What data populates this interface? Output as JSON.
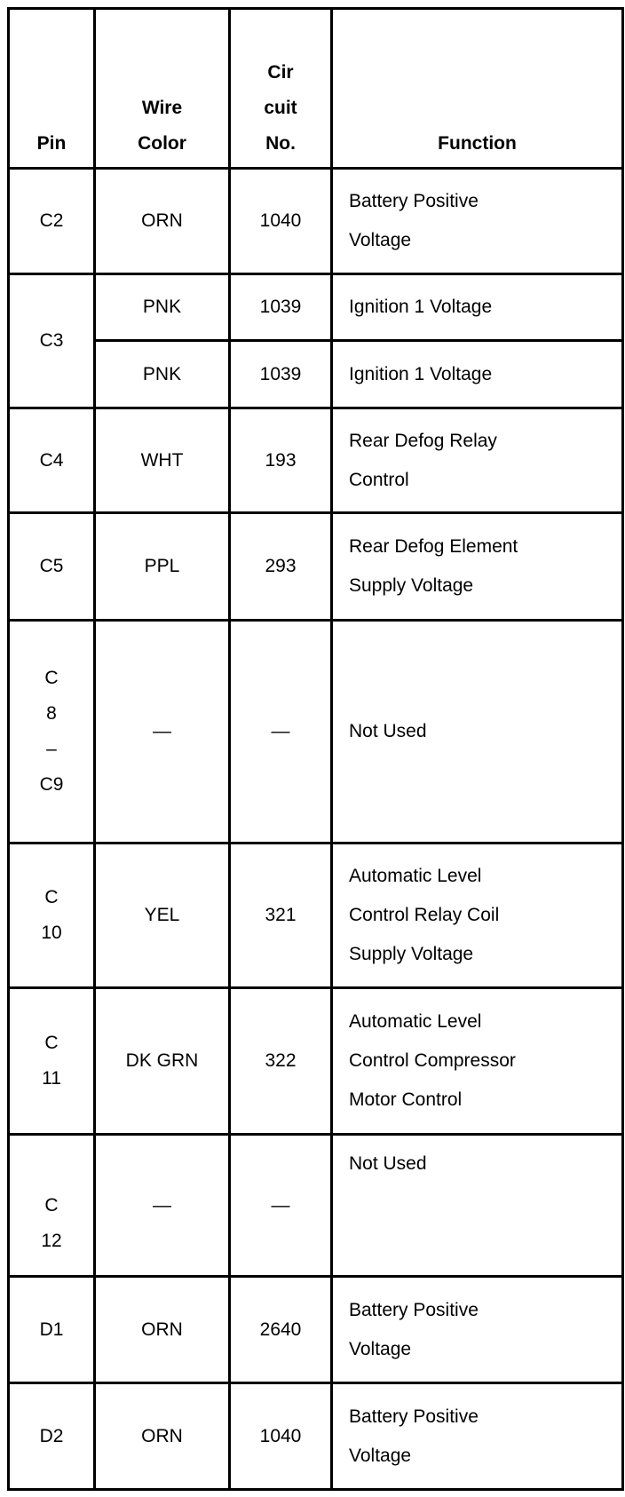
{
  "headers": {
    "pin": "Pin",
    "wire_color": [
      "Wire",
      "Color"
    ],
    "circuit_no": [
      "Cir",
      "cuit",
      "No."
    ],
    "function": "Function"
  },
  "rows": [
    {
      "pin": "C2",
      "wire": "ORN",
      "circuit": "1040",
      "function": [
        "Battery Positive",
        "Voltage"
      ]
    },
    {
      "pin": "C3",
      "wire": "PNK",
      "circuit": "1039",
      "function": [
        "Ignition 1 Voltage"
      ]
    },
    {
      "pin": "",
      "wire": "PNK",
      "circuit": "1039",
      "function": [
        "Ignition 1 Voltage"
      ]
    },
    {
      "pin": "C4",
      "wire": "WHT",
      "circuit": "193",
      "function": [
        "Rear Defog Relay",
        "Control"
      ]
    },
    {
      "pin": "C5",
      "wire": "PPL",
      "circuit": "293",
      "function": [
        "Rear Defog Element",
        "Supply Voltage"
      ]
    },
    {
      "pin": [
        "C",
        "8",
        "–",
        "C9"
      ],
      "wire": "—",
      "circuit": "—",
      "function": [
        "Not Used"
      ]
    },
    {
      "pin": [
        "C",
        "10"
      ],
      "wire": "YEL",
      "circuit": "321",
      "function": [
        "Automatic Level",
        "Control Relay Coil",
        "Supply Voltage"
      ]
    },
    {
      "pin": [
        "C",
        "11"
      ],
      "wire": "DK GRN",
      "circuit": "322",
      "function": [
        "Automatic Level",
        "Control Compressor",
        "Motor Control"
      ]
    },
    {
      "pin": [
        "C",
        "12"
      ],
      "wire": "—",
      "circuit": "—",
      "function": [
        "Not Used"
      ]
    },
    {
      "pin": "D1",
      "wire": "ORN",
      "circuit": "2640",
      "function": [
        "Battery Positive",
        "Voltage"
      ]
    },
    {
      "pin": "D2",
      "wire": "ORN",
      "circuit": "1040",
      "function": [
        "Battery Positive",
        "Voltage"
      ]
    }
  ]
}
